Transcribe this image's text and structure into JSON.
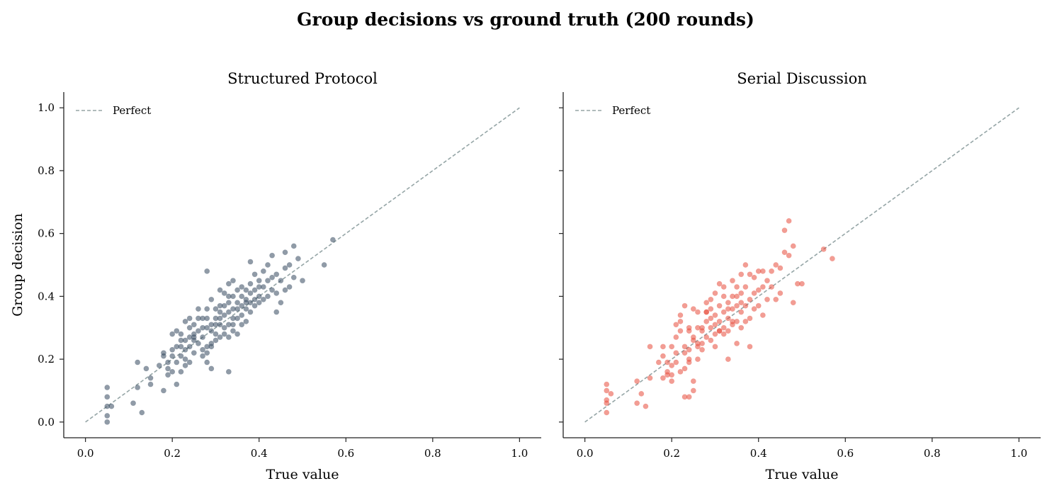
{
  "suptitle": "Group decisions vs ground truth (200 rounds)",
  "colors": {
    "structured": "#34495e",
    "serial": "#e74c3c",
    "perfect_line": "#95a5a6",
    "axis": "#222222"
  },
  "chart_data": [
    {
      "type": "scatter",
      "title": "Structured Protocol",
      "xlabel": "True value",
      "ylabel": "Group decision",
      "xlim": [
        -0.05,
        1.05
      ],
      "ylim": [
        -0.05,
        1.05
      ],
      "xticks": [
        "0.0",
        "0.2",
        "0.4",
        "0.6",
        "0.8",
        "1.0"
      ],
      "yticks": [
        "0.0",
        "0.2",
        "0.4",
        "0.6",
        "0.8",
        "1.0"
      ],
      "grid": false,
      "legend": {
        "location": "top-left",
        "entries": [
          "Perfect"
        ]
      },
      "reference_line": {
        "label": "Perfect",
        "x": [
          0,
          1
        ],
        "y": [
          0,
          1
        ],
        "style": "dashed"
      },
      "series": [
        {
          "color": "#34495e",
          "x": [
            0.05,
            0.05,
            0.05,
            0.05,
            0.05,
            0.06,
            0.11,
            0.12,
            0.12,
            0.13,
            0.14,
            0.15,
            0.15,
            0.17,
            0.18,
            0.18,
            0.18,
            0.19,
            0.19,
            0.19,
            0.2,
            0.2,
            0.2,
            0.2,
            0.21,
            0.21,
            0.21,
            0.21,
            0.22,
            0.22,
            0.22,
            0.22,
            0.23,
            0.23,
            0.23,
            0.23,
            0.23,
            0.24,
            0.24,
            0.24,
            0.24,
            0.24,
            0.25,
            0.25,
            0.25,
            0.25,
            0.26,
            0.26,
            0.26,
            0.27,
            0.27,
            0.27,
            0.27,
            0.27,
            0.28,
            0.28,
            0.28,
            0.28,
            0.28,
            0.28,
            0.29,
            0.29,
            0.29,
            0.29,
            0.29,
            0.3,
            0.3,
            0.3,
            0.3,
            0.3,
            0.31,
            0.31,
            0.31,
            0.31,
            0.31,
            0.32,
            0.32,
            0.32,
            0.32,
            0.32,
            0.33,
            0.33,
            0.33,
            0.33,
            0.33,
            0.33,
            0.34,
            0.34,
            0.34,
            0.34,
            0.34,
            0.35,
            0.35,
            0.35,
            0.35,
            0.35,
            0.36,
            0.36,
            0.36,
            0.36,
            0.36,
            0.37,
            0.37,
            0.37,
            0.37,
            0.38,
            0.38,
            0.38,
            0.38,
            0.38,
            0.39,
            0.39,
            0.39,
            0.39,
            0.4,
            0.4,
            0.4,
            0.4,
            0.41,
            0.41,
            0.41,
            0.42,
            0.42,
            0.42,
            0.43,
            0.43,
            0.43,
            0.44,
            0.44,
            0.44,
            0.45,
            0.45,
            0.46,
            0.46,
            0.46,
            0.47,
            0.47,
            0.48,
            0.48,
            0.49,
            0.5,
            0.55,
            0.57,
            0.28,
            0.29,
            0.26,
            0.31,
            0.34,
            0.37,
            0.33,
            0.25,
            0.22
          ],
          "y": [
            0.0,
            0.02,
            0.05,
            0.08,
            0.11,
            0.05,
            0.06,
            0.11,
            0.19,
            0.03,
            0.17,
            0.14,
            0.12,
            0.18,
            0.1,
            0.21,
            0.22,
            0.15,
            0.17,
            0.19,
            0.23,
            0.28,
            0.16,
            0.21,
            0.12,
            0.19,
            0.24,
            0.29,
            0.16,
            0.21,
            0.24,
            0.28,
            0.18,
            0.2,
            0.23,
            0.26,
            0.32,
            0.19,
            0.24,
            0.27,
            0.3,
            0.33,
            0.22,
            0.26,
            0.28,
            0.31,
            0.25,
            0.29,
            0.36,
            0.23,
            0.27,
            0.3,
            0.33,
            0.21,
            0.19,
            0.24,
            0.3,
            0.33,
            0.36,
            0.48,
            0.17,
            0.25,
            0.29,
            0.31,
            0.39,
            0.26,
            0.28,
            0.31,
            0.33,
            0.36,
            0.27,
            0.31,
            0.33,
            0.37,
            0.42,
            0.28,
            0.3,
            0.34,
            0.37,
            0.41,
            0.16,
            0.27,
            0.31,
            0.35,
            0.38,
            0.44,
            0.29,
            0.33,
            0.36,
            0.4,
            0.45,
            0.28,
            0.33,
            0.36,
            0.38,
            0.42,
            0.31,
            0.34,
            0.37,
            0.4,
            0.43,
            0.32,
            0.36,
            0.39,
            0.42,
            0.35,
            0.38,
            0.41,
            0.44,
            0.51,
            0.37,
            0.39,
            0.42,
            0.47,
            0.38,
            0.4,
            0.43,
            0.45,
            0.39,
            0.43,
            0.48,
            0.4,
            0.45,
            0.5,
            0.42,
            0.46,
            0.53,
            0.35,
            0.41,
            0.47,
            0.38,
            0.45,
            0.42,
            0.49,
            0.54,
            0.43,
            0.5,
            0.46,
            0.56,
            0.52,
            0.45,
            0.5,
            0.58,
            0.22,
            0.24,
            0.33,
            0.35,
            0.31,
            0.38,
            0.4,
            0.27,
            0.26
          ]
        }
      ]
    },
    {
      "type": "scatter",
      "title": "Serial Discussion",
      "xlabel": "True value",
      "ylabel": "",
      "xlim": [
        -0.05,
        1.05
      ],
      "ylim": [
        -0.05,
        1.05
      ],
      "xticks": [
        "0.0",
        "0.2",
        "0.4",
        "0.6",
        "0.8",
        "1.0"
      ],
      "yticks": [],
      "grid": false,
      "legend": {
        "location": "top-left",
        "entries": [
          "Perfect"
        ]
      },
      "reference_line": {
        "label": "Perfect",
        "x": [
          0,
          1
        ],
        "y": [
          0,
          1
        ],
        "style": "dashed"
      },
      "series": [
        {
          "color": "#e74c3c",
          "x": [
            0.05,
            0.05,
            0.05,
            0.05,
            0.05,
            0.06,
            0.12,
            0.12,
            0.13,
            0.14,
            0.15,
            0.15,
            0.17,
            0.18,
            0.18,
            0.18,
            0.19,
            0.19,
            0.19,
            0.2,
            0.2,
            0.2,
            0.21,
            0.21,
            0.21,
            0.22,
            0.22,
            0.22,
            0.23,
            0.23,
            0.23,
            0.23,
            0.24,
            0.24,
            0.24,
            0.24,
            0.25,
            0.25,
            0.25,
            0.25,
            0.26,
            0.26,
            0.26,
            0.26,
            0.27,
            0.27,
            0.27,
            0.28,
            0.28,
            0.28,
            0.28,
            0.29,
            0.29,
            0.29,
            0.29,
            0.3,
            0.3,
            0.3,
            0.3,
            0.31,
            0.31,
            0.31,
            0.31,
            0.32,
            0.32,
            0.32,
            0.32,
            0.33,
            0.33,
            0.33,
            0.33,
            0.34,
            0.34,
            0.34,
            0.34,
            0.35,
            0.35,
            0.35,
            0.35,
            0.36,
            0.36,
            0.36,
            0.36,
            0.37,
            0.37,
            0.37,
            0.38,
            0.38,
            0.38,
            0.38,
            0.39,
            0.39,
            0.39,
            0.4,
            0.4,
            0.4,
            0.41,
            0.41,
            0.41,
            0.42,
            0.42,
            0.43,
            0.43,
            0.44,
            0.44,
            0.45,
            0.45,
            0.46,
            0.46,
            0.47,
            0.47,
            0.48,
            0.48,
            0.49,
            0.5,
            0.55,
            0.57,
            0.23,
            0.24,
            0.25,
            0.26,
            0.21,
            0.22,
            0.2,
            0.27,
            0.3,
            0.32,
            0.34,
            0.36,
            0.28,
            0.31,
            0.33,
            0.35,
            0.37,
            0.24,
            0.29
          ],
          "y": [
            0.03,
            0.06,
            0.07,
            0.1,
            0.12,
            0.09,
            0.06,
            0.13,
            0.09,
            0.05,
            0.14,
            0.24,
            0.19,
            0.14,
            0.21,
            0.24,
            0.15,
            0.16,
            0.19,
            0.13,
            0.18,
            0.24,
            0.19,
            0.27,
            0.31,
            0.16,
            0.29,
            0.34,
            0.08,
            0.17,
            0.24,
            0.37,
            0.08,
            0.19,
            0.23,
            0.29,
            0.1,
            0.13,
            0.26,
            0.36,
            0.2,
            0.24,
            0.3,
            0.35,
            0.25,
            0.3,
            0.23,
            0.27,
            0.32,
            0.35,
            0.38,
            0.3,
            0.33,
            0.36,
            0.39,
            0.24,
            0.28,
            0.34,
            0.41,
            0.29,
            0.32,
            0.37,
            0.44,
            0.3,
            0.35,
            0.4,
            0.43,
            0.2,
            0.29,
            0.33,
            0.38,
            0.31,
            0.36,
            0.4,
            0.45,
            0.25,
            0.32,
            0.37,
            0.43,
            0.3,
            0.35,
            0.41,
            0.47,
            0.37,
            0.43,
            0.5,
            0.24,
            0.33,
            0.39,
            0.47,
            0.36,
            0.41,
            0.46,
            0.37,
            0.42,
            0.48,
            0.34,
            0.43,
            0.48,
            0.39,
            0.45,
            0.43,
            0.48,
            0.39,
            0.5,
            0.41,
            0.49,
            0.54,
            0.61,
            0.64,
            0.53,
            0.38,
            0.56,
            0.44,
            0.44,
            0.55,
            0.52,
            0.22,
            0.2,
            0.27,
            0.25,
            0.22,
            0.32,
            0.15,
            0.29,
            0.31,
            0.28,
            0.32,
            0.38,
            0.35,
            0.29,
            0.36,
            0.4,
            0.32,
            0.3,
            0.26
          ]
        }
      ]
    }
  ]
}
